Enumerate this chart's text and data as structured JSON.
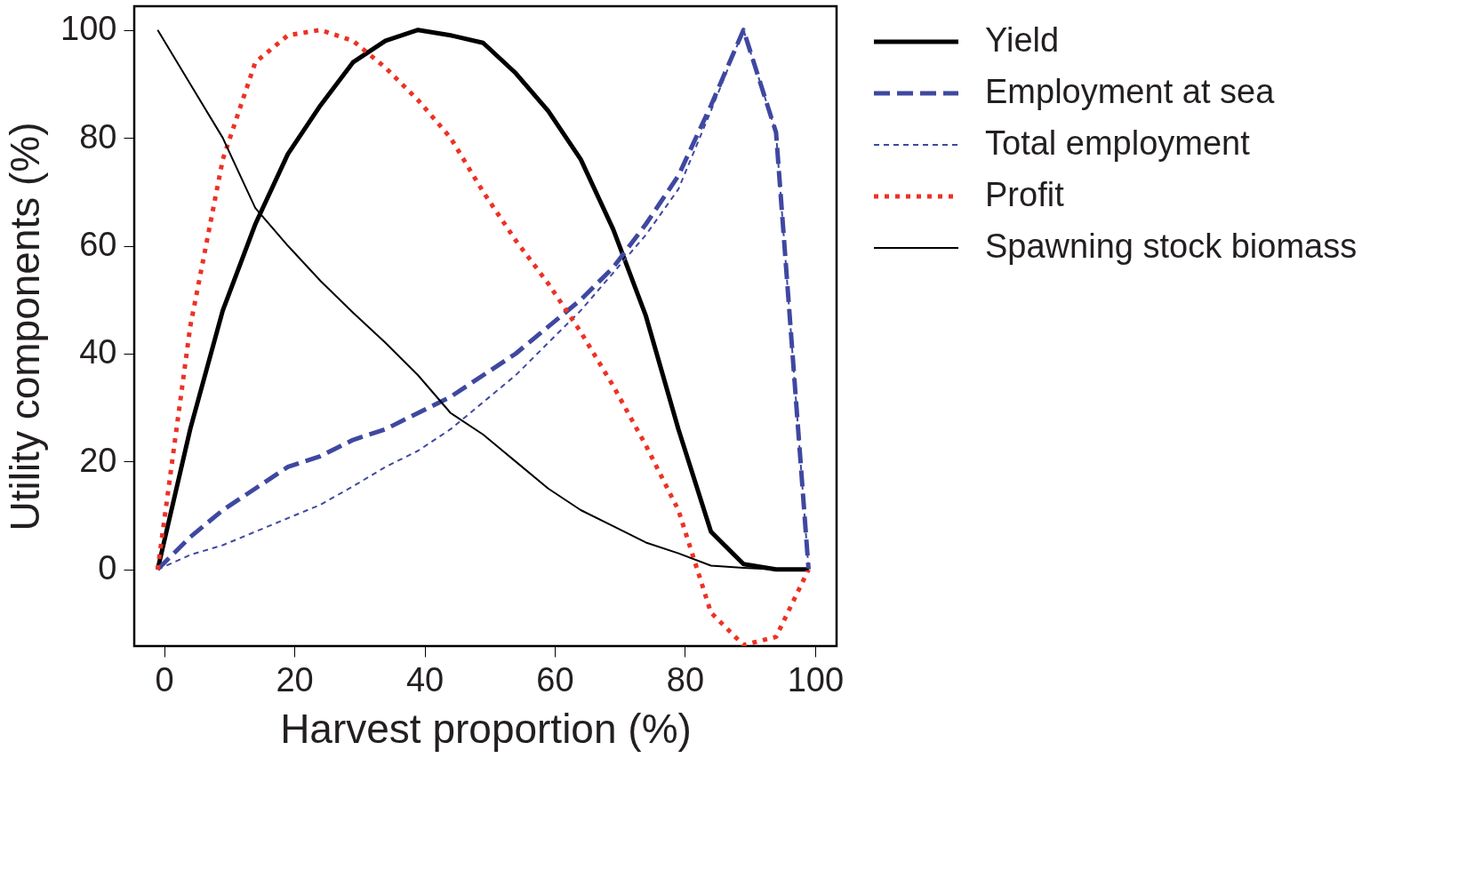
{
  "chart_data": {
    "type": "line",
    "xlabel": "Harvest proportion (%)",
    "ylabel": "Utility components (%)",
    "x": [
      -1,
      4,
      9,
      14,
      19,
      24,
      29,
      34,
      39,
      44,
      49,
      54,
      59,
      64,
      69,
      74,
      79,
      84,
      89,
      94,
      99
    ],
    "xlim": [
      -4.6,
      103.3
    ],
    "ylim": [
      -14.2,
      104.4
    ],
    "xticks": [
      0,
      20,
      40,
      60,
      80,
      100
    ],
    "yticks": [
      0,
      20,
      40,
      60,
      80,
      100
    ],
    "grid": false,
    "legend": "right",
    "marker": "none",
    "series": [
      {
        "name": "Yield",
        "color": "#000000",
        "line_style": "solid",
        "values": [
          0,
          26,
          48,
          64,
          77,
          86,
          94,
          98,
          100,
          99,
          97.6,
          92,
          85,
          76,
          63,
          47,
          26,
          7,
          1,
          0,
          0
        ]
      },
      {
        "name": "Employment at sea",
        "color": "#3f48a0",
        "line_style": "dashed",
        "values": [
          0,
          6,
          11,
          15,
          19,
          21,
          24,
          26,
          29,
          32,
          36,
          40,
          45,
          50,
          56,
          64,
          73,
          86,
          100,
          81,
          0
        ]
      },
      {
        "name": "Total employment",
        "color": "#3f48a0",
        "line_style": "dashed",
        "values": [
          0,
          2.7,
          4.5,
          7,
          9.5,
          12,
          15.4,
          19,
          22,
          26,
          31,
          36,
          42,
          48,
          55,
          62,
          70.5,
          85,
          100,
          81,
          0
        ]
      },
      {
        "name": "Profit",
        "color": "#ee3124",
        "line_style": "dotted",
        "values": [
          0,
          45,
          76,
          94,
          99,
          100,
          98,
          93,
          87,
          80,
          70,
          61,
          53,
          44,
          34,
          23,
          11,
          -8,
          -14,
          -12.5,
          0
        ]
      },
      {
        "name": "Spawning stock biomass",
        "color": "#000000",
        "line_style": "solid",
        "values": [
          100,
          90,
          80,
          67,
          60,
          53.5,
          47.6,
          42,
          36,
          29,
          25,
          20,
          15,
          11,
          8,
          5,
          3,
          0.7,
          0.3,
          0,
          0
        ]
      }
    ]
  }
}
